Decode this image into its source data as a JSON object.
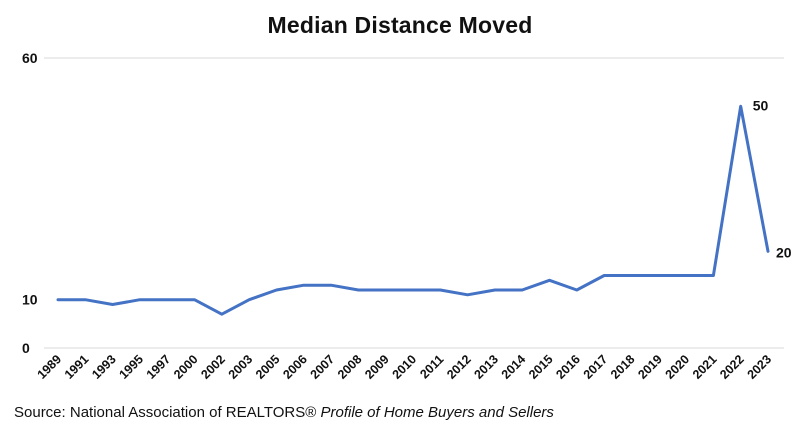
{
  "chart_data": {
    "type": "line",
    "title": "Median Distance Moved",
    "xlabel": "",
    "ylabel": "",
    "ylim": [
      0,
      60
    ],
    "yticks": [
      0,
      60
    ],
    "grid": true,
    "legend": "none",
    "line_color": "#4472C4",
    "grid_color": "#D9D9D9",
    "categories": [
      "1989",
      "1991",
      "1993",
      "1995",
      "1997",
      "2000",
      "2002",
      "2003",
      "2005",
      "2006",
      "2007",
      "2008",
      "2009",
      "2010",
      "2011",
      "2012",
      "2013",
      "2014",
      "2015",
      "2016",
      "2017",
      "2018",
      "2019",
      "2020",
      "2021",
      "2022",
      "2023"
    ],
    "series": [
      {
        "values": [
          10,
          10,
          9,
          10,
          10,
          10,
          7,
          10,
          12,
          13,
          13,
          12,
          12,
          12,
          12,
          11,
          12,
          12,
          14,
          12,
          15,
          15,
          15,
          15,
          15,
          50,
          20
        ]
      }
    ],
    "data_labels": [
      {
        "index": 0,
        "text": "10"
      },
      {
        "index": 25,
        "text": "50"
      },
      {
        "index": 26,
        "text": "20"
      }
    ]
  },
  "source": {
    "prefix": "Source: National Association of REALTORS®",
    "italic": "Profile of Home Buyers and Sellers"
  }
}
